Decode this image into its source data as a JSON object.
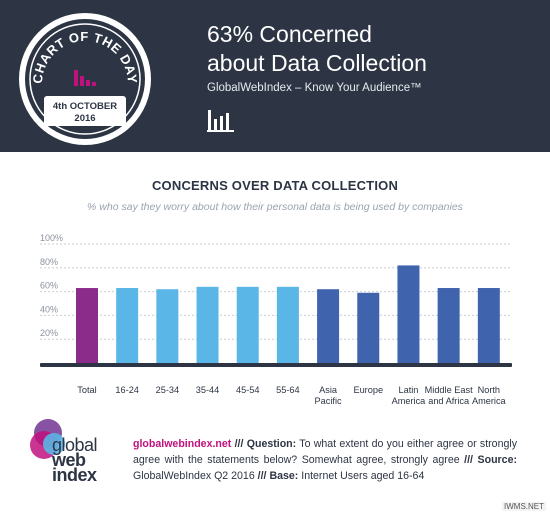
{
  "header": {
    "title_line1": "63% Concerned",
    "title_line2": "about Data Collection",
    "tagline": "GlobalWebIndex – Know Your Audience™",
    "badge": {
      "top_text": "CHART OF THE DAY",
      "date": "4th OCTOBER",
      "year": "2016"
    }
  },
  "chart_data": {
    "type": "bar",
    "title": "CONCERNS OVER DATA COLLECTION",
    "subtitle": "% who say they worry about how their personal data is being used by companies",
    "categories": [
      [
        "Total"
      ],
      [
        "16-24"
      ],
      [
        "25-34"
      ],
      [
        "35-44"
      ],
      [
        "45-54"
      ],
      [
        "55-64"
      ],
      [
        "Asia",
        "Pacific"
      ],
      [
        "Europe"
      ],
      [
        "Latin",
        "America"
      ],
      [
        "Middle East",
        "and Africa"
      ],
      [
        "North",
        "America"
      ]
    ],
    "values": [
      63,
      63,
      62,
      64,
      64,
      64,
      62,
      59,
      82,
      63,
      63
    ],
    "colors": [
      "#8b2c8a",
      "#5ab6e6",
      "#5ab6e6",
      "#5ab6e6",
      "#5ab6e6",
      "#5ab6e6",
      "#3f63ad",
      "#3f63ad",
      "#3f63ad",
      "#3f63ad",
      "#3f63ad"
    ],
    "yticks": [
      20,
      40,
      60,
      80,
      100
    ],
    "ytick_labels": [
      "20%",
      "40%",
      "60%",
      "80%",
      "100%"
    ],
    "ylim": [
      0,
      100
    ],
    "grid": true
  },
  "footer": {
    "logo_line1": "global",
    "logo_line2": "web",
    "logo_line3": "index",
    "site": "globalwebindex.net",
    "sep1": " /// ",
    "question_label": "Question:",
    "question": " To what extent do you either agree or strongly agree with the statements below? Somewhat agree, strongly agree ",
    "sep2": "///",
    "source_label": "Source:",
    "source": " GlobalWebIndex Q2 2016 ",
    "sep3": "///",
    "base_label": " Base:",
    "base": " Internet Users aged 16-64"
  },
  "watermark": "IWMS.NET",
  "colors": {
    "header_bg": "#2d3544",
    "accent_pink": "#c0127d",
    "youth_blue": "#5ab6e6",
    "region_blue": "#3f63ad",
    "total_purple": "#8b2c8a"
  }
}
